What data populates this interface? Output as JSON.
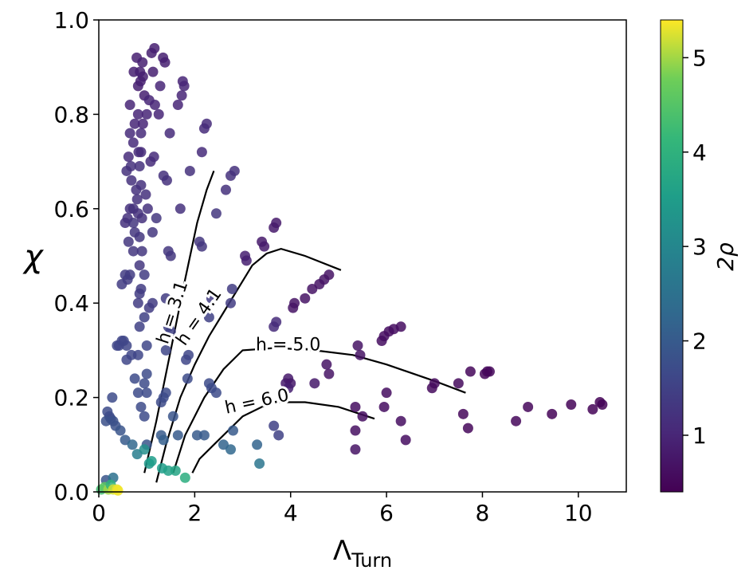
{
  "chart_data": {
    "type": "scatter",
    "xlabel": "Λ",
    "xlabel_sub": "Turn",
    "ylabel": "χ",
    "xlim": [
      0,
      11
    ],
    "ylim": [
      0,
      1
    ],
    "x_ticks": [
      0,
      2,
      4,
      6,
      8,
      10
    ],
    "y_ticks": [
      0.0,
      0.2,
      0.4,
      0.6,
      0.8,
      1.0
    ],
    "x_tick_labels": [
      "0",
      "2",
      "4",
      "6",
      "8",
      "10"
    ],
    "y_tick_labels": [
      "0.0",
      "0.2",
      "0.4",
      "0.6",
      "0.8",
      "1.0"
    ],
    "colorbar": {
      "label": "2ρ",
      "colormap": "viridis",
      "range": [
        0.4,
        5.4
      ],
      "ticks": [
        1,
        2,
        3,
        4,
        5
      ],
      "tick_labels": [
        "1",
        "2",
        "3",
        "4",
        "5"
      ]
    },
    "contours": [
      {
        "label": "h = 3.1",
        "points": [
          [
            0.95,
            0.04
          ],
          [
            1.2,
            0.15
          ],
          [
            1.5,
            0.3
          ],
          [
            1.8,
            0.45
          ],
          [
            2.05,
            0.57
          ],
          [
            2.25,
            0.64
          ],
          [
            2.4,
            0.68
          ]
        ]
      },
      {
        "label": "h = 4.1",
        "points": [
          [
            1.2,
            0.02
          ],
          [
            1.4,
            0.1
          ],
          [
            1.7,
            0.2
          ],
          [
            2.0,
            0.27
          ],
          [
            2.3,
            0.33
          ],
          [
            2.6,
            0.38
          ],
          [
            2.9,
            0.43
          ],
          [
            3.2,
            0.48
          ],
          [
            3.5,
            0.505
          ],
          [
            3.8,
            0.515
          ],
          [
            4.3,
            0.5
          ],
          [
            5.05,
            0.47
          ]
        ]
      },
      {
        "label": "h = 5.0",
        "points": [
          [
            1.55,
            0.04
          ],
          [
            1.8,
            0.12
          ],
          [
            2.2,
            0.2
          ],
          [
            2.6,
            0.26
          ],
          [
            3.0,
            0.3
          ],
          [
            3.7,
            0.305
          ],
          [
            4.5,
            0.3
          ],
          [
            5.3,
            0.29
          ],
          [
            6.0,
            0.27
          ],
          [
            7.0,
            0.235
          ],
          [
            7.65,
            0.21
          ]
        ]
      },
      {
        "label": "h = 6.0",
        "points": [
          [
            1.95,
            0.04
          ],
          [
            2.1,
            0.07
          ],
          [
            2.4,
            0.1
          ],
          [
            2.7,
            0.13
          ],
          [
            3.0,
            0.16
          ],
          [
            3.6,
            0.19
          ],
          [
            4.3,
            0.19
          ],
          [
            5.0,
            0.18
          ],
          [
            5.75,
            0.155
          ]
        ]
      }
    ],
    "points": [
      {
        "x": 0.73,
        "y": 0.89,
        "c": 0.9
      },
      {
        "x": 0.79,
        "y": 0.92,
        "c": 0.9
      },
      {
        "x": 0.86,
        "y": 0.89,
        "c": 0.9
      },
      {
        "x": 0.91,
        "y": 0.91,
        "c": 0.9
      },
      {
        "x": 0.87,
        "y": 0.87,
        "c": 0.9
      },
      {
        "x": 0.82,
        "y": 0.86,
        "c": 0.9
      },
      {
        "x": 0.92,
        "y": 0.88,
        "c": 0.9
      },
      {
        "x": 1.1,
        "y": 0.93,
        "c": 0.9
      },
      {
        "x": 1.16,
        "y": 0.94,
        "c": 0.9
      },
      {
        "x": 1.13,
        "y": 0.89,
        "c": 0.9
      },
      {
        "x": 1.34,
        "y": 0.92,
        "c": 0.9
      },
      {
        "x": 1.38,
        "y": 0.91,
        "c": 0.9
      },
      {
        "x": 0.95,
        "y": 0.84,
        "c": 0.9
      },
      {
        "x": 1.0,
        "y": 0.8,
        "c": 1.0
      },
      {
        "x": 1.17,
        "y": 0.82,
        "c": 1.0
      },
      {
        "x": 1.28,
        "y": 0.86,
        "c": 1.0
      },
      {
        "x": 1.75,
        "y": 0.87,
        "c": 1.0
      },
      {
        "x": 1.78,
        "y": 0.86,
        "c": 1.0
      },
      {
        "x": 1.73,
        "y": 0.84,
        "c": 1.0
      },
      {
        "x": 0.65,
        "y": 0.82,
        "c": 1.0
      },
      {
        "x": 0.82,
        "y": 0.8,
        "c": 1.0
      },
      {
        "x": 1.05,
        "y": 0.83,
        "c": 1.0
      },
      {
        "x": 1.65,
        "y": 0.82,
        "c": 1.0
      },
      {
        "x": 0.75,
        "y": 0.78,
        "c": 1.0
      },
      {
        "x": 0.92,
        "y": 0.78,
        "c": 1.0
      },
      {
        "x": 1.25,
        "y": 0.8,
        "c": 1.0
      },
      {
        "x": 2.2,
        "y": 0.77,
        "c": 1.1
      },
      {
        "x": 2.25,
        "y": 0.78,
        "c": 1.1
      },
      {
        "x": 2.15,
        "y": 0.72,
        "c": 1.1
      },
      {
        "x": 0.65,
        "y": 0.76,
        "c": 1.1
      },
      {
        "x": 0.88,
        "y": 0.76,
        "c": 1.1
      },
      {
        "x": 1.48,
        "y": 0.76,
        "c": 1.1
      },
      {
        "x": 0.72,
        "y": 0.74,
        "c": 1.1
      },
      {
        "x": 0.83,
        "y": 0.72,
        "c": 1.1
      },
      {
        "x": 0.88,
        "y": 0.72,
        "c": 1.1
      },
      {
        "x": 1.08,
        "y": 0.7,
        "c": 1.1
      },
      {
        "x": 1.15,
        "y": 0.71,
        "c": 1.1
      },
      {
        "x": 0.62,
        "y": 0.71,
        "c": 1.1
      },
      {
        "x": 0.67,
        "y": 0.69,
        "c": 1.2
      },
      {
        "x": 0.85,
        "y": 0.69,
        "c": 1.2
      },
      {
        "x": 0.58,
        "y": 0.68,
        "c": 1.2
      },
      {
        "x": 1.9,
        "y": 0.68,
        "c": 1.2
      },
      {
        "x": 2.75,
        "y": 0.67,
        "c": 1.2
      },
      {
        "x": 2.83,
        "y": 0.68,
        "c": 1.2
      },
      {
        "x": 0.68,
        "y": 0.66,
        "c": 1.2
      },
      {
        "x": 0.88,
        "y": 0.65,
        "c": 1.2
      },
      {
        "x": 1.35,
        "y": 0.67,
        "c": 1.2
      },
      {
        "x": 1.42,
        "y": 0.66,
        "c": 1.2
      },
      {
        "x": 2.65,
        "y": 0.64,
        "c": 1.2
      },
      {
        "x": 0.78,
        "y": 0.64,
        "c": 1.2
      },
      {
        "x": 0.98,
        "y": 0.63,
        "c": 1.2
      },
      {
        "x": 0.8,
        "y": 0.62,
        "c": 1.2
      },
      {
        "x": 0.6,
        "y": 0.58,
        "c": 1.2
      },
      {
        "x": 0.65,
        "y": 0.6,
        "c": 1.2
      },
      {
        "x": 0.72,
        "y": 0.6,
        "c": 1.2
      },
      {
        "x": 0.82,
        "y": 0.59,
        "c": 1.2
      },
      {
        "x": 1.02,
        "y": 0.6,
        "c": 1.2
      },
      {
        "x": 1.7,
        "y": 0.6,
        "c": 1.2
      },
      {
        "x": 0.9,
        "y": 0.58,
        "c": 1.2
      },
      {
        "x": 0.55,
        "y": 0.57,
        "c": 1.2
      },
      {
        "x": 0.72,
        "y": 0.57,
        "c": 1.3
      },
      {
        "x": 1.2,
        "y": 0.58,
        "c": 1.3
      },
      {
        "x": 2.45,
        "y": 0.59,
        "c": 1.3
      },
      {
        "x": 0.75,
        "y": 0.55,
        "c": 1.3
      },
      {
        "x": 1.12,
        "y": 0.55,
        "c": 1.3
      },
      {
        "x": 0.62,
        "y": 0.53,
        "c": 1.3
      },
      {
        "x": 0.85,
        "y": 0.54,
        "c": 1.3
      },
      {
        "x": 2.1,
        "y": 0.53,
        "c": 1.3
      },
      {
        "x": 2.15,
        "y": 0.52,
        "c": 1.3
      },
      {
        "x": 1.45,
        "y": 0.51,
        "c": 1.3
      },
      {
        "x": 1.5,
        "y": 0.5,
        "c": 1.3
      },
      {
        "x": 0.72,
        "y": 0.51,
        "c": 1.3
      },
      {
        "x": 0.9,
        "y": 0.51,
        "c": 1.3
      },
      {
        "x": 0.85,
        "y": 0.48,
        "c": 1.3
      },
      {
        "x": 3.05,
        "y": 0.5,
        "c": 0.9
      },
      {
        "x": 3.08,
        "y": 0.49,
        "c": 0.9
      },
      {
        "x": 3.4,
        "y": 0.53,
        "c": 0.8
      },
      {
        "x": 3.45,
        "y": 0.52,
        "c": 0.8
      },
      {
        "x": 3.65,
        "y": 0.56,
        "c": 0.8
      },
      {
        "x": 3.7,
        "y": 0.57,
        "c": 0.8
      },
      {
        "x": 0.55,
        "y": 0.46,
        "c": 1.4
      },
      {
        "x": 0.65,
        "y": 0.46,
        "c": 1.4
      },
      {
        "x": 0.95,
        "y": 0.46,
        "c": 1.4
      },
      {
        "x": 0.48,
        "y": 0.44,
        "c": 1.4
      },
      {
        "x": 0.6,
        "y": 0.45,
        "c": 1.4
      },
      {
        "x": 0.88,
        "y": 0.43,
        "c": 1.4
      },
      {
        "x": 0.85,
        "y": 0.42,
        "c": 1.4
      },
      {
        "x": 0.82,
        "y": 0.4,
        "c": 1.4
      },
      {
        "x": 2.78,
        "y": 0.43,
        "c": 1.4
      },
      {
        "x": 2.35,
        "y": 0.41,
        "c": 1.4
      },
      {
        "x": 1.12,
        "y": 0.4,
        "c": 1.4
      },
      {
        "x": 1.4,
        "y": 0.41,
        "c": 1.4
      },
      {
        "x": 2.75,
        "y": 0.4,
        "c": 1.4
      },
      {
        "x": 1.05,
        "y": 0.39,
        "c": 1.4
      },
      {
        "x": 4.45,
        "y": 0.43,
        "c": 0.7
      },
      {
        "x": 4.6,
        "y": 0.44,
        "c": 0.7
      },
      {
        "x": 4.7,
        "y": 0.45,
        "c": 0.7
      },
      {
        "x": 4.8,
        "y": 0.46,
        "c": 0.7
      },
      {
        "x": 4.3,
        "y": 0.41,
        "c": 0.7
      },
      {
        "x": 4.05,
        "y": 0.39,
        "c": 0.7
      },
      {
        "x": 4.08,
        "y": 0.4,
        "c": 0.7
      },
      {
        "x": 0.95,
        "y": 0.37,
        "c": 1.5
      },
      {
        "x": 0.85,
        "y": 0.35,
        "c": 1.5
      },
      {
        "x": 3.7,
        "y": 0.36,
        "c": 1.1
      },
      {
        "x": 3.65,
        "y": 0.35,
        "c": 1.1
      },
      {
        "x": 1.45,
        "y": 0.35,
        "c": 1.5
      },
      {
        "x": 1.5,
        "y": 0.34,
        "c": 1.5
      },
      {
        "x": 2.3,
        "y": 0.37,
        "c": 1.5
      },
      {
        "x": 0.52,
        "y": 0.32,
        "c": 1.6
      },
      {
        "x": 0.42,
        "y": 0.31,
        "c": 1.6
      },
      {
        "x": 0.48,
        "y": 0.32,
        "c": 1.6
      },
      {
        "x": 0.38,
        "y": 0.31,
        "c": 1.6
      },
      {
        "x": 0.58,
        "y": 0.31,
        "c": 1.6
      },
      {
        "x": 1.0,
        "y": 0.31,
        "c": 1.6
      },
      {
        "x": 1.4,
        "y": 0.3,
        "c": 1.6
      },
      {
        "x": 0.68,
        "y": 0.29,
        "c": 1.6
      },
      {
        "x": 0.58,
        "y": 0.28,
        "c": 1.6
      },
      {
        "x": 0.82,
        "y": 0.29,
        "c": 1.6
      },
      {
        "x": 1.82,
        "y": 0.28,
        "c": 1.6
      },
      {
        "x": 1.87,
        "y": 0.29,
        "c": 1.6
      },
      {
        "x": 1.0,
        "y": 0.25,
        "c": 1.7
      },
      {
        "x": 0.75,
        "y": 0.24,
        "c": 1.7
      },
      {
        "x": 0.95,
        "y": 0.23,
        "c": 1.7
      },
      {
        "x": 1.85,
        "y": 0.24,
        "c": 1.7
      },
      {
        "x": 2.3,
        "y": 0.23,
        "c": 1.7
      },
      {
        "x": 2.35,
        "y": 0.22,
        "c": 1.7
      },
      {
        "x": 2.45,
        "y": 0.21,
        "c": 1.7
      },
      {
        "x": 0.82,
        "y": 0.21,
        "c": 1.7
      },
      {
        "x": 1.0,
        "y": 0.21,
        "c": 1.7
      },
      {
        "x": 1.35,
        "y": 0.2,
        "c": 1.7
      },
      {
        "x": 1.4,
        "y": 0.21,
        "c": 1.7
      },
      {
        "x": 1.3,
        "y": 0.19,
        "c": 1.7
      },
      {
        "x": 0.88,
        "y": 0.18,
        "c": 1.7
      },
      {
        "x": 0.95,
        "y": 0.16,
        "c": 1.7
      },
      {
        "x": 0.28,
        "y": 0.2,
        "c": 1.7
      },
      {
        "x": 0.18,
        "y": 0.17,
        "c": 1.7
      },
      {
        "x": 0.22,
        "y": 0.16,
        "c": 1.7
      },
      {
        "x": 0.25,
        "y": 0.155,
        "c": 1.7
      },
      {
        "x": 0.15,
        "y": 0.15,
        "c": 1.8
      },
      {
        "x": 0.3,
        "y": 0.15,
        "c": 1.8
      },
      {
        "x": 0.35,
        "y": 0.14,
        "c": 1.8
      },
      {
        "x": 0.45,
        "y": 0.13,
        "c": 1.9
      },
      {
        "x": 0.55,
        "y": 0.11,
        "c": 2.0
      },
      {
        "x": 0.7,
        "y": 0.1,
        "c": 2.3
      },
      {
        "x": 1.0,
        "y": 0.1,
        "c": 1.9
      },
      {
        "x": 1.55,
        "y": 0.16,
        "c": 1.9
      },
      {
        "x": 1.3,
        "y": 0.12,
        "c": 2.0
      },
      {
        "x": 1.35,
        "y": 0.11,
        "c": 2.1
      },
      {
        "x": 1.65,
        "y": 0.12,
        "c": 2.0
      },
      {
        "x": 2.05,
        "y": 0.12,
        "c": 2.0
      },
      {
        "x": 2.2,
        "y": 0.12,
        "c": 2.0
      },
      {
        "x": 2.8,
        "y": 0.13,
        "c": 2.0
      },
      {
        "x": 2.6,
        "y": 0.1,
        "c": 2.2
      },
      {
        "x": 2.75,
        "y": 0.09,
        "c": 2.3
      },
      {
        "x": 3.3,
        "y": 0.1,
        "c": 2.2
      },
      {
        "x": 3.35,
        "y": 0.06,
        "c": 2.6
      },
      {
        "x": 0.8,
        "y": 0.08,
        "c": 2.8
      },
      {
        "x": 0.95,
        "y": 0.09,
        "c": 3.2
      },
      {
        "x": 1.05,
        "y": 0.06,
        "c": 3.4
      },
      {
        "x": 1.1,
        "y": 0.065,
        "c": 3.5
      },
      {
        "x": 1.32,
        "y": 0.05,
        "c": 3.5
      },
      {
        "x": 1.45,
        "y": 0.045,
        "c": 3.6
      },
      {
        "x": 1.6,
        "y": 0.045,
        "c": 3.7
      },
      {
        "x": 1.8,
        "y": 0.03,
        "c": 3.9
      },
      {
        "x": 0.05,
        "y": 0.005,
        "c": 4.3
      },
      {
        "x": 0.15,
        "y": 0.025,
        "c": 1.9
      },
      {
        "x": 0.3,
        "y": 0.03,
        "c": 2.5
      },
      {
        "x": 0.12,
        "y": 0.01,
        "c": 4.6
      },
      {
        "x": 0.2,
        "y": 0.005,
        "c": 5.0
      },
      {
        "x": 0.25,
        "y": 0.015,
        "c": 4.0
      },
      {
        "x": 0.3,
        "y": 0.005,
        "c": 5.2
      },
      {
        "x": 0.38,
        "y": 0.005,
        "c": 5.3
      },
      {
        "x": 0.4,
        "y": 0.003,
        "c": 5.35
      },
      {
        "x": 5.4,
        "y": 0.31,
        "c": 0.7
      },
      {
        "x": 5.45,
        "y": 0.29,
        "c": 0.7
      },
      {
        "x": 5.9,
        "y": 0.32,
        "c": 0.6
      },
      {
        "x": 5.95,
        "y": 0.33,
        "c": 0.6
      },
      {
        "x": 6.05,
        "y": 0.34,
        "c": 0.6
      },
      {
        "x": 6.15,
        "y": 0.345,
        "c": 0.6
      },
      {
        "x": 6.3,
        "y": 0.35,
        "c": 0.6
      },
      {
        "x": 4.75,
        "y": 0.27,
        "c": 0.7
      },
      {
        "x": 4.8,
        "y": 0.25,
        "c": 0.7
      },
      {
        "x": 3.9,
        "y": 0.23,
        "c": 0.8
      },
      {
        "x": 3.95,
        "y": 0.24,
        "c": 0.8
      },
      {
        "x": 4.0,
        "y": 0.23,
        "c": 0.8
      },
      {
        "x": 4.5,
        "y": 0.23,
        "c": 0.8
      },
      {
        "x": 7.0,
        "y": 0.23,
        "c": 0.55
      },
      {
        "x": 6.95,
        "y": 0.22,
        "c": 0.55
      },
      {
        "x": 7.5,
        "y": 0.23,
        "c": 0.55
      },
      {
        "x": 7.75,
        "y": 0.255,
        "c": 0.5
      },
      {
        "x": 8.05,
        "y": 0.25,
        "c": 0.5
      },
      {
        "x": 8.1,
        "y": 0.255,
        "c": 0.5
      },
      {
        "x": 8.15,
        "y": 0.255,
        "c": 0.5
      },
      {
        "x": 6.0,
        "y": 0.21,
        "c": 0.6
      },
      {
        "x": 5.35,
        "y": 0.18,
        "c": 0.6
      },
      {
        "x": 5.5,
        "y": 0.16,
        "c": 0.6
      },
      {
        "x": 5.95,
        "y": 0.18,
        "c": 0.6
      },
      {
        "x": 6.3,
        "y": 0.15,
        "c": 0.6
      },
      {
        "x": 6.4,
        "y": 0.11,
        "c": 0.6
      },
      {
        "x": 5.35,
        "y": 0.13,
        "c": 0.65
      },
      {
        "x": 5.35,
        "y": 0.09,
        "c": 0.7
      },
      {
        "x": 7.6,
        "y": 0.165,
        "c": 0.5
      },
      {
        "x": 7.7,
        "y": 0.135,
        "c": 0.5
      },
      {
        "x": 8.7,
        "y": 0.15,
        "c": 0.5
      },
      {
        "x": 8.95,
        "y": 0.18,
        "c": 0.5
      },
      {
        "x": 9.45,
        "y": 0.165,
        "c": 0.45
      },
      {
        "x": 9.85,
        "y": 0.185,
        "c": 0.45
      },
      {
        "x": 10.3,
        "y": 0.175,
        "c": 0.45
      },
      {
        "x": 10.45,
        "y": 0.19,
        "c": 0.45
      },
      {
        "x": 10.5,
        "y": 0.185,
        "c": 0.45
      },
      {
        "x": 3.65,
        "y": 0.14,
        "c": 1.5
      },
      {
        "x": 3.75,
        "y": 0.12,
        "c": 1.5
      },
      {
        "x": 3.95,
        "y": 0.22,
        "c": 0.9
      }
    ]
  }
}
